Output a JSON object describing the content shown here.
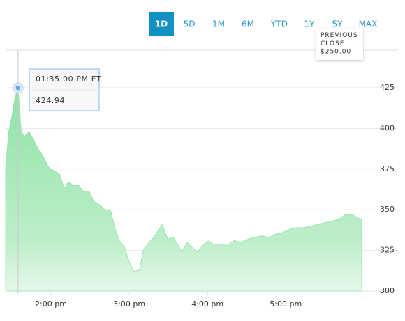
{
  "ranges": [
    "1D",
    "5D",
    "1M",
    "6M",
    "YTD",
    "1Y",
    "5Y",
    "MAX"
  ],
  "active_range": 0,
  "previous_close": {
    "label": "PREVIOUS CLOSE",
    "value": "$250.00"
  },
  "chart_data": {
    "type": "area",
    "x": [
      13.42,
      13.46,
      13.51,
      13.54,
      13.58,
      13.62,
      13.66,
      13.72,
      13.78,
      13.84,
      13.9,
      13.97,
      14.04,
      14.11,
      14.17,
      14.22,
      14.29,
      14.35,
      14.42,
      14.49,
      14.55,
      14.62,
      14.69,
      14.76,
      14.82,
      14.88,
      14.94,
      15.0,
      15.06,
      15.13,
      15.18,
      15.24,
      15.31,
      15.38,
      15.42,
      15.49,
      15.56,
      15.63,
      15.67,
      15.74,
      15.8,
      15.87,
      15.94,
      16.01,
      16.07,
      16.16,
      16.25,
      16.34,
      16.43,
      16.52,
      16.6,
      16.69,
      16.79,
      16.87,
      16.96,
      17.05,
      17.14,
      17.23,
      17.32,
      17.41,
      17.49,
      17.58,
      17.67,
      17.76,
      17.85,
      17.92,
      17.97
    ],
    "series": [
      {
        "color": "#9ee6b2",
        "values": [
          376,
          398,
          410,
          419,
          424.94,
          398,
          395,
          398,
          393,
          387,
          383,
          376,
          374,
          372,
          363,
          367,
          365,
          365,
          361,
          361,
          355,
          353,
          350,
          350,
          338,
          331,
          327,
          318,
          312,
          313,
          325,
          329,
          333,
          338,
          341,
          332,
          333,
          328,
          324,
          330,
          327,
          324,
          328,
          331,
          329,
          329,
          328,
          331,
          330,
          332,
          333,
          334,
          333,
          335,
          336,
          338,
          339,
          339,
          340,
          341,
          342,
          343,
          344,
          347,
          347,
          345,
          344
        ]
      }
    ],
    "xlim": [
      13.42,
      17.97
    ],
    "xticks": [
      {
        "value": 14,
        "label": "2:00 pm"
      },
      {
        "value": 15,
        "label": "3:00 pm"
      },
      {
        "value": 16,
        "label": "4:00 pm"
      },
      {
        "value": 17,
        "label": "5:00 pm"
      }
    ],
    "ylim": [
      300,
      425
    ],
    "yticks": [
      300,
      325,
      350,
      375,
      400,
      425
    ],
    "grid": true,
    "tooltip": {
      "point": 4,
      "time": "01:35:00 PM ET",
      "value": 424.94
    }
  }
}
